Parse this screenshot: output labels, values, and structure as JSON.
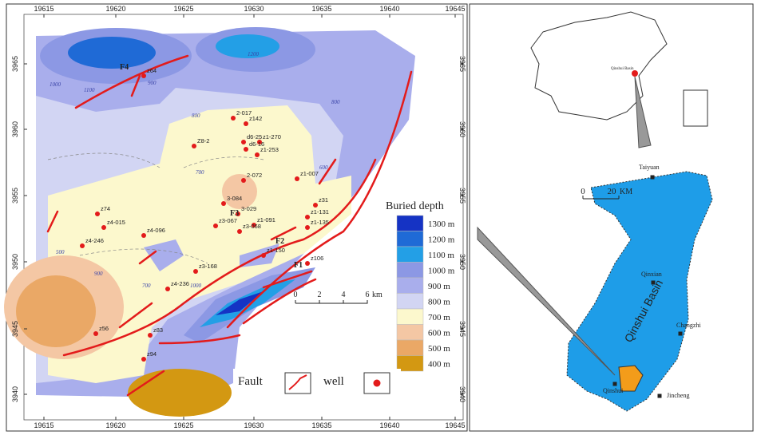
{
  "map": {
    "x_ticks": [
      19615,
      19620,
      19625,
      19630,
      19635,
      19640,
      19645
    ],
    "y_ticks": [
      3965,
      3960,
      3955,
      3950,
      3945,
      3940
    ],
    "wells": [
      "z64",
      "2-017",
      "z142",
      "d6-25",
      "z1-270",
      "Z8-2",
      "d6-16",
      "z1-253",
      "z1-007",
      "2-072",
      "3-084",
      "3-029",
      "z31",
      "z1-131",
      "z1-091",
      "z3-067",
      "z3-068",
      "z1-135",
      "z74",
      "z4-015",
      "z4-096",
      "z4-246",
      "z3-168",
      "z1-150",
      "z106",
      "z4-236",
      "z83",
      "z94",
      "z56"
    ],
    "faults": [
      "F4",
      "F3",
      "F2",
      "F1"
    ],
    "contour_labels": [
      "1000",
      "1200",
      "1100",
      "900",
      "800",
      "700",
      "600",
      "500",
      "1000",
      "900",
      "700",
      "800"
    ],
    "scale": {
      "ticks": [
        "0",
        "2",
        "4",
        "6"
      ],
      "unit": "km"
    },
    "legend": {
      "title": "Buried depth",
      "items": [
        {
          "label": "1300 m",
          "color": "#1533c4"
        },
        {
          "label": "1200 m",
          "color": "#1f6ad6"
        },
        {
          "label": "1100 m",
          "color": "#239fe6"
        },
        {
          "label": "1000 m",
          "color": "#8c98e4"
        },
        {
          "label": "900 m",
          "color": "#a9aeec"
        },
        {
          "label": "800 m",
          "color": "#d2d5f3"
        },
        {
          "label": "700 m",
          "color": "#fcf8cd"
        },
        {
          "label": "600 m",
          "color": "#f4c7a4"
        },
        {
          "label": "500 m",
          "color": "#eaa866"
        },
        {
          "label": "400 m",
          "color": "#d39812"
        }
      ]
    },
    "symbols": {
      "fault": "Fault",
      "well": "well"
    }
  },
  "locator": {
    "china_label": "Qinshui Basin",
    "cities": [
      "Taiyuan",
      "Qinxian",
      "Changzhi",
      "Jincheng",
      "Qinshui"
    ],
    "basin_label": "Qinshui Basin",
    "scale": {
      "ticks": [
        "0",
        "20"
      ],
      "unit": "KM"
    }
  }
}
